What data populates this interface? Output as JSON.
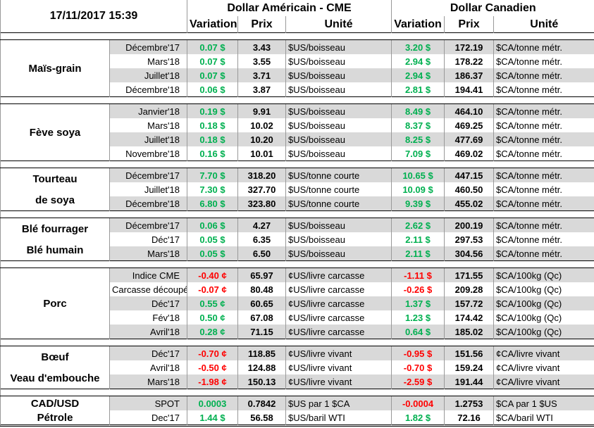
{
  "header": {
    "date": "17/11/2017 15:39",
    "groups": [
      "Dollar Américain - CME",
      "Dollar Canadien"
    ],
    "columns": [
      "Variation",
      "Prix",
      "Unité",
      "Variation",
      "Prix",
      "Unité"
    ]
  },
  "sections": [
    {
      "labels": [
        "Maïs-grain"
      ],
      "rows": [
        [
          "Décembre'17",
          "0.07 $",
          "3.43",
          "$US/boisseau",
          "3.20 $",
          "172.19",
          "$CA/tonne métr."
        ],
        [
          "Mars'18",
          "0.07 $",
          "3.55",
          "$US/boisseau",
          "2.94 $",
          "178.22",
          "$CA/tonne métr."
        ],
        [
          "Juillet'18",
          "0.07 $",
          "3.71",
          "$US/boisseau",
          "2.94 $",
          "186.37",
          "$CA/tonne métr."
        ],
        [
          "Décembre'18",
          "0.06 $",
          "3.87",
          "$US/boisseau",
          "2.81 $",
          "194.41",
          "$CA/tonne métr."
        ]
      ]
    },
    {
      "labels": [
        "Fève soya"
      ],
      "rows": [
        [
          "Janvier'18",
          "0.19 $",
          "9.91",
          "$US/boisseau",
          "8.49 $",
          "464.10",
          "$CA/tonne métr."
        ],
        [
          "Mars'18",
          "0.18 $",
          "10.02",
          "$US/boisseau",
          "8.37 $",
          "469.25",
          "$CA/tonne métr."
        ],
        [
          "Juillet'18",
          "0.18 $",
          "10.20",
          "$US/boisseau",
          "8.25 $",
          "477.69",
          "$CA/tonne métr."
        ],
        [
          "Novembre'18",
          "0.16 $",
          "10.01",
          "$US/boisseau",
          "7.09 $",
          "469.02",
          "$CA/tonne métr."
        ]
      ]
    },
    {
      "labels": [
        "Tourteau",
        "de soya"
      ],
      "rows": [
        [
          "Décembre'17",
          "7.70 $",
          "318.20",
          "$US/tonne courte",
          "10.65 $",
          "447.15",
          "$CA/tonne métr."
        ],
        [
          "Juillet'18",
          "7.30 $",
          "327.70",
          "$US/tonne courte",
          "10.09 $",
          "460.50",
          "$CA/tonne métr."
        ],
        [
          "Décembre'18",
          "6.80 $",
          "323.80",
          "$US/tonne courte",
          "9.39 $",
          "455.02",
          "$CA/tonne métr."
        ]
      ]
    },
    {
      "labels": [
        "Blé fourrager",
        "Blé humain"
      ],
      "rows": [
        [
          "Décembre'17",
          "0.06 $",
          "4.27",
          "$US/boisseau",
          "2.62 $",
          "200.19",
          "$CA/tonne métr."
        ],
        [
          "Déc'17",
          "0.05 $",
          "6.35",
          "$US/boisseau",
          "2.11 $",
          "297.53",
          "$CA/tonne métr."
        ],
        [
          "Mars'18",
          "0.05 $",
          "6.50",
          "$US/boisseau",
          "2.11 $",
          "304.56",
          "$CA/tonne métr."
        ]
      ]
    },
    {
      "labels": [
        "Porc"
      ],
      "rows": [
        [
          "Indice CME",
          "-0.40 ¢",
          "65.97",
          "¢US/livre carcasse",
          "-1.11 $",
          "171.55",
          "$CA/100kg (Qc)"
        ],
        [
          "Carcasse découpée",
          "-0.07 ¢",
          "80.48",
          "¢US/livre carcasse",
          "-0.26 $",
          "209.28",
          "$CA/100kg (Qc)"
        ],
        [
          "Déc'17",
          "0.55 ¢",
          "60.65",
          "¢US/livre carcasse",
          "1.37 $",
          "157.72",
          "$CA/100kg (Qc)"
        ],
        [
          "Fév'18",
          "0.50 ¢",
          "67.08",
          "¢US/livre carcasse",
          "1.23 $",
          "174.42",
          "$CA/100kg (Qc)"
        ],
        [
          "Avril'18",
          "0.28 ¢",
          "71.15",
          "¢US/livre carcasse",
          "0.64 $",
          "185.02",
          "$CA/100kg (Qc)"
        ]
      ]
    },
    {
      "labels": [
        "Bœuf",
        "Veau d'embouche"
      ],
      "rows": [
        [
          "Déc'17",
          "-0.70 ¢",
          "118.85",
          "¢US/livre vivant",
          "-0.95 $",
          "151.56",
          "¢CA/livre vivant"
        ],
        [
          "Avril'18",
          "-0.50 ¢",
          "124.88",
          "¢US/livre vivant",
          "-0.70 $",
          "159.24",
          "¢CA/livre vivant"
        ],
        [
          "Mars'18",
          "-1.98 ¢",
          "150.13",
          "¢US/livre vivant",
          "-2.59 $",
          "191.44",
          "¢CA/livre vivant"
        ]
      ]
    },
    {
      "labels": [
        "CAD/USD",
        "Pétrole"
      ],
      "rows": [
        [
          "SPOT",
          "0.0003",
          "0.7842",
          "$US par 1 $CA",
          "-0.0004",
          "1.2753",
          "$CA par 1 $US"
        ],
        [
          "Dec'17",
          "1.44 $",
          "56.58",
          "$US/baril WTI",
          "1.82 $",
          "72.16",
          "$CA/baril WTI"
        ]
      ]
    }
  ]
}
